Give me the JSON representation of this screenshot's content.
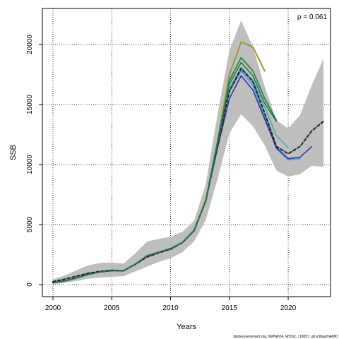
{
  "chart_data": {
    "type": "line",
    "title": "",
    "xlabel": "Years",
    "ylabel": "SSB",
    "annotation": "ρ = 0.061",
    "credit": "stockassessment.org, NWW024_WOSC, r18057, git e38aa2b4980",
    "xlim": [
      1999.1,
      2023.6
    ],
    "ylim": [
      -1000,
      23000
    ],
    "grid": true,
    "x_ticks": [
      2000,
      2005,
      2010,
      2015,
      2020
    ],
    "y_ticks": [
      0,
      5000,
      10000,
      15000,
      20000
    ],
    "x_tick_labels": [
      "2000",
      "2005",
      "2010",
      "2015",
      "2020"
    ],
    "y_tick_labels": [
      "0",
      "5000",
      "10000",
      "15000",
      "20000"
    ],
    "confidence_band": {
      "x": [
        2000,
        2001,
        2002,
        2003,
        2004,
        2005,
        2006,
        2007,
        2008,
        2009,
        2010,
        2011,
        2012,
        2013,
        2014,
        2015,
        2016,
        2017,
        2018,
        2019,
        2020,
        2021,
        2022,
        2023
      ],
      "upper": [
        450,
        750,
        1200,
        1600,
        1800,
        1850,
        1750,
        2600,
        3600,
        3800,
        4000,
        4400,
        5300,
        8400,
        14200,
        19500,
        22000,
        19800,
        16500,
        13700,
        13000,
        14100,
        16600,
        18800
      ],
      "lower": [
        50,
        150,
        300,
        500,
        600,
        650,
        700,
        1100,
        1500,
        1900,
        2200,
        2700,
        3600,
        5400,
        8800,
        12600,
        14200,
        13200,
        11600,
        9500,
        9000,
        9200,
        9900,
        9800
      ],
      "color": "#bebebe"
    },
    "series": [
      {
        "x": [
          2000,
          2001,
          2002,
          2003,
          2004,
          2005,
          2006,
          2007,
          2008,
          2009,
          2010,
          2011,
          2012,
          2013,
          2014,
          2015,
          2016,
          2017,
          2018
        ],
        "values": [
          150,
          300,
          550,
          850,
          1050,
          1150,
          1150,
          1700,
          2400,
          2700,
          3000,
          3500,
          4500,
          7000,
          12000,
          17500,
          20200,
          19800,
          17800
        ],
        "color": "#9a9a2a",
        "width": 2,
        "dash": ""
      },
      {
        "x": [
          2000,
          2001,
          2002,
          2003,
          2004,
          2005,
          2006,
          2007,
          2008,
          2009,
          2010,
          2011,
          2012,
          2013,
          2014,
          2015,
          2016,
          2017,
          2018,
          2019
        ],
        "values": [
          150,
          300,
          550,
          850,
          1050,
          1150,
          1150,
          1700,
          2400,
          2700,
          3000,
          3500,
          4500,
          7000,
          11900,
          17000,
          18900,
          17800,
          15500,
          13700
        ],
        "color": "#2e8b57",
        "width": 2,
        "dash": ""
      },
      {
        "x": [
          2000,
          2001,
          2002,
          2003,
          2004,
          2005,
          2006,
          2007,
          2008,
          2009,
          2010,
          2011,
          2012,
          2013,
          2014,
          2015,
          2016,
          2017,
          2018,
          2019,
          2020
        ],
        "values": [
          150,
          300,
          550,
          850,
          1050,
          1150,
          1150,
          1700,
          2400,
          2700,
          3000,
          3500,
          4500,
          7000,
          11700,
          16300,
          18100,
          17000,
          14800,
          12400,
          11400
        ],
        "color": "#3cb3a8",
        "width": 1.5,
        "dash": ""
      },
      {
        "x": [
          2000,
          2001,
          2002,
          2003,
          2004,
          2005,
          2006,
          2007,
          2008,
          2009,
          2010,
          2011,
          2012,
          2013,
          2014,
          2015,
          2016,
          2017,
          2018,
          2019,
          2020,
          2021
        ],
        "values": [
          150,
          300,
          550,
          850,
          1050,
          1150,
          1150,
          1700,
          2400,
          2700,
          3000,
          3500,
          4500,
          7000,
          11600,
          16100,
          17800,
          16600,
          14000,
          11300,
          10400,
          10500
        ],
        "color": "#3399ee",
        "width": 1.5,
        "dash": ""
      },
      {
        "x": [
          2000,
          2001,
          2002,
          2003,
          2004,
          2005,
          2006,
          2007,
          2008,
          2009,
          2010,
          2011,
          2012,
          2013,
          2014,
          2015,
          2016,
          2017,
          2018,
          2019,
          2020,
          2021,
          2022
        ],
        "values": [
          150,
          300,
          550,
          850,
          1050,
          1150,
          1150,
          1700,
          2400,
          2700,
          3000,
          3500,
          4500,
          7000,
          11400,
          15500,
          17400,
          16200,
          13800,
          11400,
          10500,
          10600,
          11500
        ],
        "color": "#2b2b9e",
        "width": 1.5,
        "dash": ""
      },
      {
        "x": [
          2000,
          2001,
          2002,
          2003,
          2004,
          2005,
          2006,
          2007,
          2008,
          2009,
          2010,
          2011,
          2012,
          2013,
          2014,
          2015,
          2016,
          2017,
          2018,
          2019,
          2020,
          2021,
          2022,
          2023
        ],
        "values": [
          250,
          450,
          700,
          950,
          1100,
          1200,
          1150,
          1700,
          2300,
          2650,
          2950,
          3500,
          4500,
          7000,
          11700,
          16100,
          18000,
          16900,
          14300,
          11500,
          10900,
          11500,
          12800,
          13600
        ],
        "color": "#222222",
        "width": 2,
        "dash": "4,3"
      },
      {
        "x": [
          2000,
          2001,
          2002,
          2003,
          2004,
          2005,
          2006,
          2007,
          2008,
          2009,
          2010,
          2011,
          2012,
          2013,
          2014,
          2015,
          2016,
          2017,
          2018,
          2019
        ],
        "values": [
          150,
          300,
          550,
          850,
          1050,
          1150,
          1150,
          1700,
          2400,
          2700,
          3000,
          3500,
          4500,
          7000,
          11800,
          16700,
          18500,
          17400,
          15100,
          13600
        ],
        "color": "#1f7a3a",
        "width": 1.5,
        "dash": ""
      }
    ]
  }
}
